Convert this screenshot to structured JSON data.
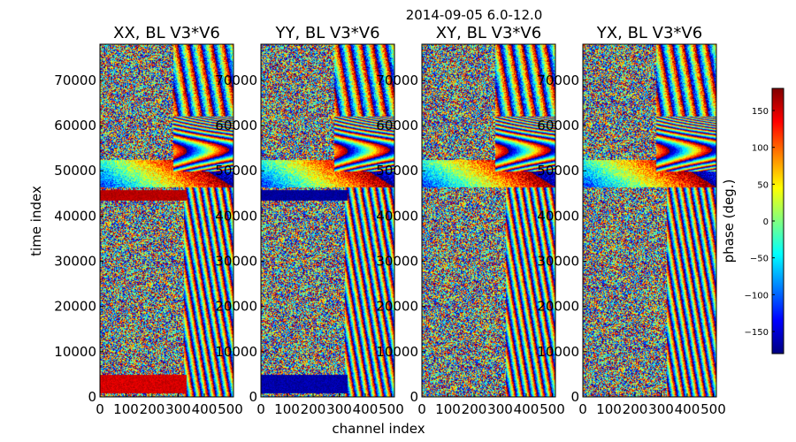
{
  "chart_data": {
    "type": "heatmap",
    "suptitle": "2014-09-05 6.0-12.0",
    "xlabel": "channel index",
    "ylabel": "time index",
    "xlim": [
      0,
      512
    ],
    "ylim": [
      0,
      78000
    ],
    "x_ticks": [
      0,
      100,
      200,
      300,
      400,
      500
    ],
    "x_tick_labels": [
      "0",
      "100",
      "200",
      "300",
      "400",
      "500"
    ],
    "y_ticks": [
      0,
      10000,
      20000,
      30000,
      40000,
      50000,
      60000,
      70000
    ],
    "y_tick_labels": [
      "0",
      "10000",
      "20000",
      "30000",
      "40000",
      "50000",
      "60000",
      "70000"
    ],
    "panels": [
      {
        "title": "XX, BL V3*V6",
        "band_low_phase": 150,
        "band_high_phase": 160
      },
      {
        "title": "YY, BL V3*V6",
        "band_low_phase": -165,
        "band_high_phase": -170
      },
      {
        "title": "XY, BL V3*V6",
        "band_low_phase": null,
        "band_high_phase": null
      },
      {
        "title": "YX, BL V3*V6",
        "band_low_phase": null,
        "band_high_phase": null
      }
    ],
    "colorbar": {
      "label": "phase (deg.)",
      "range": [
        -180,
        180
      ],
      "ticks": [
        -150,
        -100,
        -50,
        0,
        50,
        100,
        150
      ],
      "tick_labels": [
        "−150",
        "−100",
        "−50",
        "0",
        "50",
        "100",
        "150"
      ],
      "colormap": "jet"
    }
  }
}
